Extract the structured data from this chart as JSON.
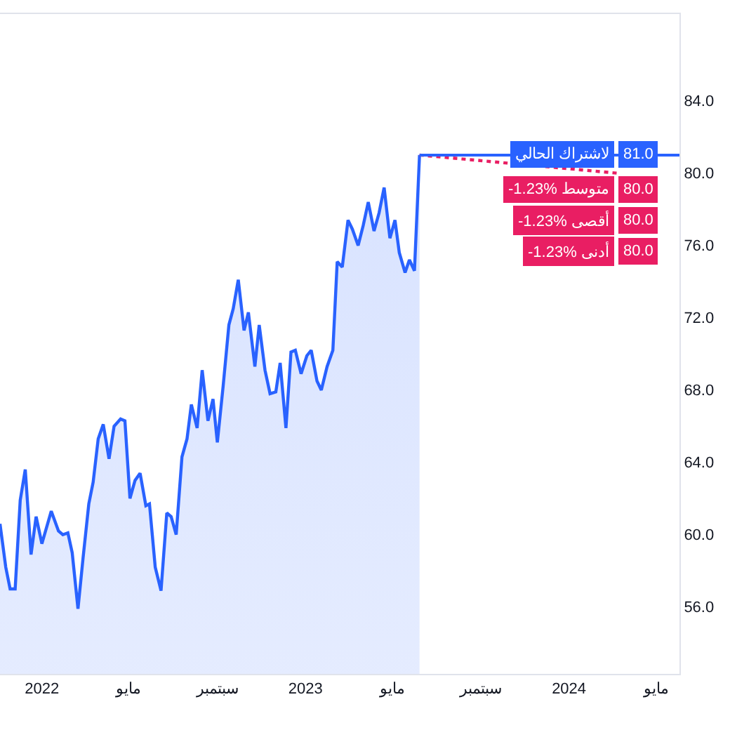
{
  "chart_data": {
    "type": "area",
    "xlim": [
      "2021-11-04",
      "2024-06-02"
    ],
    "ylim": [
      52.3,
      88.8
    ],
    "yticks": [
      {
        "value": 56,
        "label": "56.0"
      },
      {
        "value": 60,
        "label": "60.0"
      },
      {
        "value": 64,
        "label": "64.0"
      },
      {
        "value": 68,
        "label": "68.0"
      },
      {
        "value": 72,
        "label": "72.0"
      },
      {
        "value": 76,
        "label": "76.0"
      },
      {
        "value": 80,
        "label": "80.0"
      },
      {
        "value": 84,
        "label": "84.0"
      }
    ],
    "xticks": [
      {
        "value": "2022-01-01",
        "label": "2022"
      },
      {
        "value": "2022-05-01",
        "label": "مايو"
      },
      {
        "value": "2022-09-01",
        "label": "سبتمبر"
      },
      {
        "value": "2023-01-01",
        "label": "2023"
      },
      {
        "value": "2023-05-01",
        "label": "مايو"
      },
      {
        "value": "2023-09-01",
        "label": "سبتمبر"
      },
      {
        "value": "2024-01-01",
        "label": "2024"
      },
      {
        "value": "2024-05-01",
        "label": "مايو"
      }
    ],
    "legend": false,
    "marker": "none",
    "series": [
      {
        "color": "#2962ff",
        "line_style": "solid",
        "x": [
          "2021-11-04",
          "2021-11-12",
          "2021-11-18",
          "2021-11-25",
          "2021-12-02",
          "2021-12-09",
          "2021-12-17",
          "2021-12-24",
          "2022-01-01",
          "2022-01-14",
          "2022-01-24",
          "2022-01-30",
          "2022-02-06",
          "2022-02-12",
          "2022-02-20",
          "2022-02-27",
          "2022-03-07",
          "2022-03-13",
          "2022-03-20",
          "2022-03-27",
          "2022-04-04",
          "2022-04-11",
          "2022-04-20",
          "2022-04-26",
          "2022-05-03",
          "2022-05-10",
          "2022-05-17",
          "2022-05-25",
          "2022-05-30",
          "2022-06-07",
          "2022-06-15",
          "2022-06-23",
          "2022-06-29",
          "2022-07-06",
          "2022-07-14",
          "2022-07-21",
          "2022-07-27",
          "2022-08-04",
          "2022-08-11",
          "2022-08-19",
          "2022-08-26",
          "2022-09-01",
          "2022-09-09",
          "2022-09-17",
          "2022-09-23",
          "2022-09-30",
          "2022-10-08",
          "2022-10-14",
          "2022-10-23",
          "2022-10-29",
          "2022-11-06",
          "2022-11-13",
          "2022-11-21",
          "2022-11-27",
          "2022-12-05",
          "2022-12-12",
          "2022-12-18",
          "2022-12-26",
          "2023-01-03",
          "2023-01-09",
          "2023-01-17",
          "2023-01-23",
          "2023-01-31",
          "2023-02-08",
          "2023-02-14",
          "2023-02-21",
          "2023-03-01",
          "2023-03-07",
          "2023-03-15",
          "2023-03-22",
          "2023-03-29",
          "2023-04-06",
          "2023-04-13",
          "2023-04-20",
          "2023-04-28",
          "2023-05-05",
          "2023-05-11",
          "2023-05-19",
          "2023-05-25",
          "2023-06-01",
          "2023-06-08"
        ],
        "values": [
          60.6,
          58.2,
          57.0,
          57.0,
          61.9,
          63.6,
          58.9,
          61.0,
          59.5,
          61.3,
          60.2,
          60.0,
          60.1,
          59.0,
          55.9,
          58.7,
          61.7,
          62.9,
          65.3,
          66.1,
          64.2,
          66.0,
          66.4,
          66.3,
          62.0,
          63.0,
          63.4,
          61.6,
          61.7,
          58.2,
          56.9,
          61.2,
          61.0,
          60.0,
          64.3,
          65.3,
          67.2,
          65.9,
          69.1,
          66.3,
          67.5,
          65.1,
          68.2,
          71.6,
          72.5,
          74.1,
          71.3,
          72.3,
          69.3,
          71.6,
          69.1,
          67.8,
          67.9,
          69.5,
          65.9,
          70.1,
          70.2,
          68.9,
          69.9,
          70.2,
          68.5,
          68.0,
          69.3,
          70.2,
          75.1,
          74.8,
          77.4,
          76.9,
          76.0,
          77.1,
          78.4,
          76.8,
          77.8,
          79.2,
          76.4,
          77.4,
          75.6,
          74.5,
          75.2,
          74.6,
          81.0
        ]
      },
      {
        "type": "line",
        "color": "#e91e63",
        "line_style": "dotted",
        "x": [
          "2023-06-08",
          "2024-03-07"
        ],
        "values": [
          81.0,
          80.0
        ]
      }
    ],
    "ref_lines": [
      {
        "axis": "y",
        "value": 81.0,
        "label": "لاشتراك الحالي",
        "color": "#2962ff"
      }
    ],
    "annotations": [
      "81.0",
      "-1.23% متوسط",
      "80.0",
      "-1.23% أقصى",
      "80.0",
      "-1.23% أدنى",
      "80.0"
    ]
  }
}
